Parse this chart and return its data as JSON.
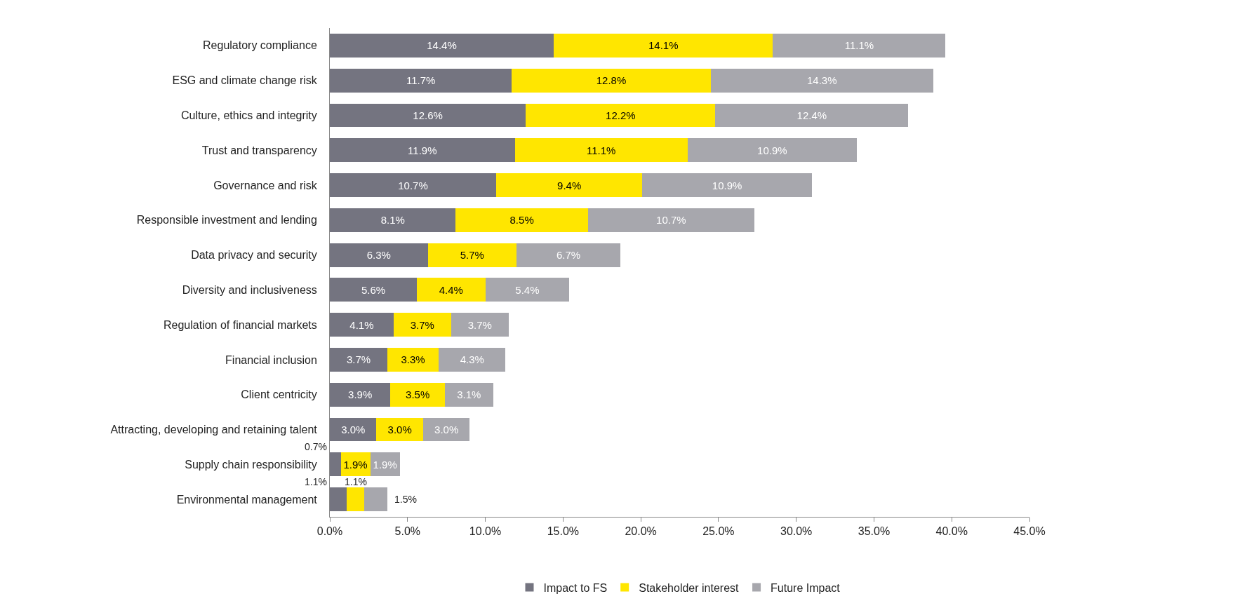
{
  "chart_data": {
    "type": "bar",
    "orientation": "horizontal",
    "stacked": true,
    "categories": [
      "Regulatory compliance",
      "ESG and climate change risk",
      "Culture, ethics and integrity",
      "Trust and transparency",
      "Governance and risk",
      "Responsible investment and lending",
      "Data privacy and security",
      "Diversity and inclusiveness",
      "Regulation of financial markets",
      "Financial inclusion",
      "Client centricity",
      "Attracting, developing and retaining talent",
      "Supply chain responsibility",
      "Environmental management"
    ],
    "series": [
      {
        "name": "Impact to FS",
        "color": "#747480",
        "values": [
          14.4,
          11.7,
          12.6,
          11.9,
          10.7,
          8.1,
          6.3,
          5.6,
          4.1,
          3.7,
          3.9,
          3.0,
          0.7,
          1.1
        ],
        "value_labels": [
          "14.4%",
          "11.7%",
          "12.6%",
          "11.9%",
          "10.7%",
          "8.1%",
          "6.3%",
          "5.6%",
          "4.1%",
          "3.7%",
          "3.9%",
          "3.0%",
          "0.7%",
          "1.1%"
        ]
      },
      {
        "name": "Stakeholder interest",
        "color": "#ffe600",
        "values": [
          14.1,
          12.8,
          12.2,
          11.1,
          9.4,
          8.5,
          5.7,
          4.4,
          3.7,
          3.3,
          3.5,
          3.0,
          1.9,
          1.1
        ],
        "value_labels": [
          "14.1%",
          "12.8%",
          "12.2%",
          "11.1%",
          "9.4%",
          "8.5%",
          "5.7%",
          "4.4%",
          "3.7%",
          "3.3%",
          "3.5%",
          "3.0%",
          "1.9%",
          "1.1%"
        ]
      },
      {
        "name": "Future Impact",
        "color": "#a7a7ad",
        "values": [
          11.1,
          14.3,
          12.4,
          10.9,
          10.9,
          10.7,
          6.7,
          5.4,
          3.7,
          4.3,
          3.1,
          3.0,
          1.9,
          1.5
        ],
        "value_labels": [
          "11.1%",
          "14.3%",
          "12.4%",
          "10.9%",
          "10.9%",
          "10.7%",
          "6.7%",
          "5.4%",
          "3.7%",
          "4.3%",
          "3.1%",
          "3.0%",
          "1.9%",
          "1.5%"
        ]
      }
    ],
    "xlim": [
      0,
      45
    ],
    "xticks": [
      {
        "value": 0,
        "label": "0.0%"
      },
      {
        "value": 5,
        "label": "5.0%"
      },
      {
        "value": 10,
        "label": "10.0%"
      },
      {
        "value": 15,
        "label": "15.0%"
      },
      {
        "value": 20,
        "label": "20.0%"
      },
      {
        "value": 25,
        "label": "25.0%"
      },
      {
        "value": 30,
        "label": "30.0%"
      },
      {
        "value": 35,
        "label": "35.0%"
      },
      {
        "value": 40,
        "label": "40.0%"
      },
      {
        "value": 45,
        "label": "45.0%"
      }
    ],
    "grid": false,
    "legend": "bottom"
  }
}
